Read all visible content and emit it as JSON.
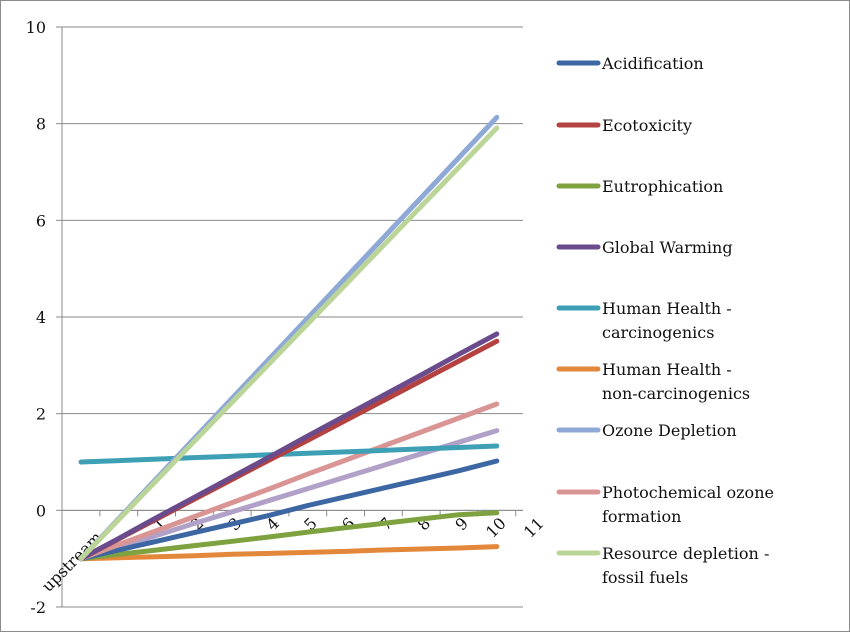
{
  "chart_data": {
    "type": "line",
    "title": "",
    "xlabel": "",
    "ylabel": "",
    "ylim": [
      -2,
      10
    ],
    "y_ticks": [
      -2,
      0,
      2,
      4,
      6,
      8,
      10
    ],
    "categories": [
      "upstream",
      "1",
      "2",
      "3",
      "4",
      "5",
      "6",
      "7",
      "8",
      "9",
      "10",
      "11"
    ],
    "grid": "horizontal",
    "legend_position": "right",
    "series": [
      {
        "name": "Acidification",
        "color": "#3c67a3",
        "values": [
          -1,
          -0.82,
          -0.64,
          -0.46,
          -0.28,
          -0.1,
          0.1,
          0.28,
          0.46,
          0.64,
          0.82,
          1.02
        ]
      },
      {
        "name": "Ecotoxicity",
        "color": "#b34240",
        "values": [
          -1,
          -0.59,
          -0.18,
          0.23,
          0.64,
          1.05,
          1.45,
          1.86,
          2.27,
          2.68,
          3.09,
          3.5
        ]
      },
      {
        "name": "Eutrophication",
        "color": "#7ea23f",
        "values": [
          -1,
          -0.91,
          -0.82,
          -0.73,
          -0.64,
          -0.55,
          -0.45,
          -0.36,
          -0.27,
          -0.18,
          -0.09,
          -0.05
        ]
      },
      {
        "name": "Global Warming",
        "color": "#6a4b8c",
        "values": [
          -1,
          -0.58,
          -0.15,
          0.27,
          0.69,
          1.11,
          1.54,
          1.96,
          2.38,
          2.8,
          3.23,
          3.65
        ]
      },
      {
        "name": "Human Health - carcinogenics",
        "color": "#3ea0b5",
        "values": [
          1,
          1.03,
          1.06,
          1.09,
          1.12,
          1.15,
          1.18,
          1.21,
          1.24,
          1.27,
          1.3,
          1.33
        ]
      },
      {
        "name": "Human Health - non-carcinogenics",
        "color": "#e3873a",
        "values": [
          -1,
          -0.98,
          -0.96,
          -0.94,
          -0.91,
          -0.89,
          -0.87,
          -0.85,
          -0.82,
          -0.8,
          -0.78,
          -0.75
        ]
      },
      {
        "name": "Ozone Depletion",
        "color": "#8ea9d5",
        "values": [
          -1,
          -0.17,
          0.66,
          1.49,
          2.32,
          3.15,
          3.98,
          4.81,
          5.64,
          6.47,
          7.3,
          8.13
        ]
      },
      {
        "name": "Photochemical ozone formation",
        "color": "#d99594",
        "values": [
          -1,
          -0.71,
          -0.42,
          -0.13,
          0.16,
          0.45,
          0.75,
          1.04,
          1.33,
          1.62,
          1.91,
          2.2
        ]
      },
      {
        "name": "Resource depletion - fossil fuels",
        "color": "#bbd598",
        "values": [
          -1,
          -0.19,
          0.62,
          1.43,
          2.24,
          3.05,
          3.86,
          4.67,
          5.48,
          6.29,
          7.1,
          7.91
        ]
      },
      {
        "name": "",
        "color": "#b1a0c7",
        "values": [
          -1,
          -0.76,
          -0.52,
          -0.27,
          -0.03,
          0.21,
          0.45,
          0.69,
          0.93,
          1.17,
          1.41,
          1.65
        ]
      }
    ]
  }
}
